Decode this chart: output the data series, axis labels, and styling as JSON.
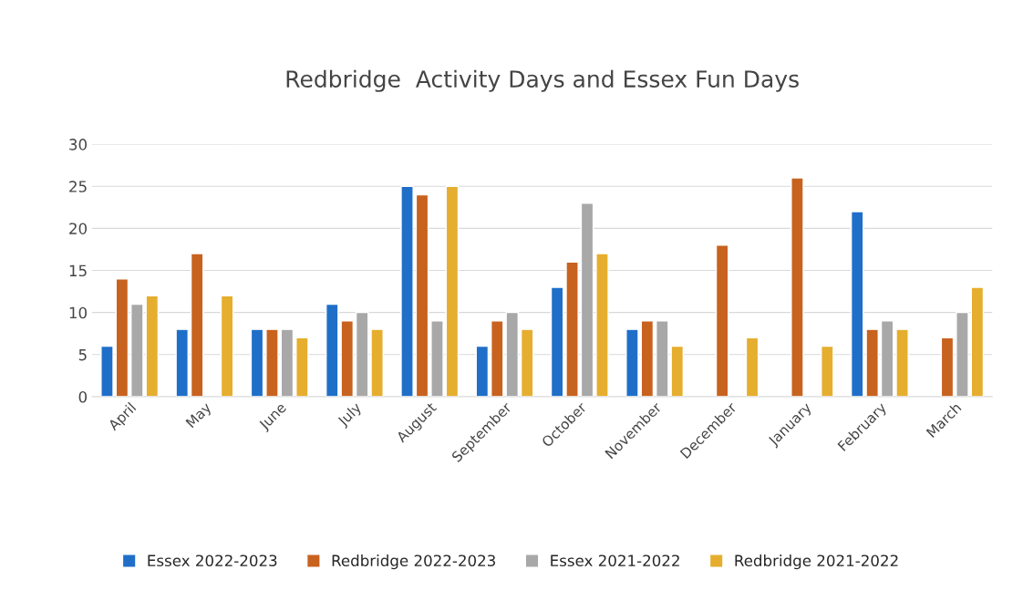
{
  "chart_data": {
    "type": "bar",
    "title": "Redbridge  Activity Days and Essex Fun Days",
    "categories": [
      "April",
      "May",
      "June",
      "July",
      "August",
      "September",
      "October",
      "November",
      "December",
      "January",
      "February",
      "March"
    ],
    "series": [
      {
        "name": "Essex 2022-2023",
        "color": "#1f6fc9",
        "values": [
          6,
          8,
          8,
          11,
          25,
          6,
          13,
          8,
          null,
          null,
          22,
          null
        ]
      },
      {
        "name": "Redbridge 2022-2023",
        "color": "#c8621f",
        "values": [
          14,
          17,
          8,
          9,
          24,
          9,
          16,
          9,
          18,
          26,
          8,
          7
        ]
      },
      {
        "name": "Essex 2021-2022",
        "color": "#a8a8a8",
        "values": [
          11,
          null,
          8,
          10,
          9,
          10,
          23,
          9,
          null,
          null,
          9,
          10
        ]
      },
      {
        "name": "Redbridge 2021-2022",
        "color": "#e6ae2e",
        "values": [
          12,
          12,
          7,
          8,
          25,
          8,
          17,
          6,
          7,
          6,
          8,
          13
        ]
      }
    ],
    "ylim": [
      0,
      30
    ],
    "yticks": [
      0,
      5,
      10,
      15,
      20,
      25,
      30
    ],
    "grid": "y",
    "legend": "bottom"
  }
}
